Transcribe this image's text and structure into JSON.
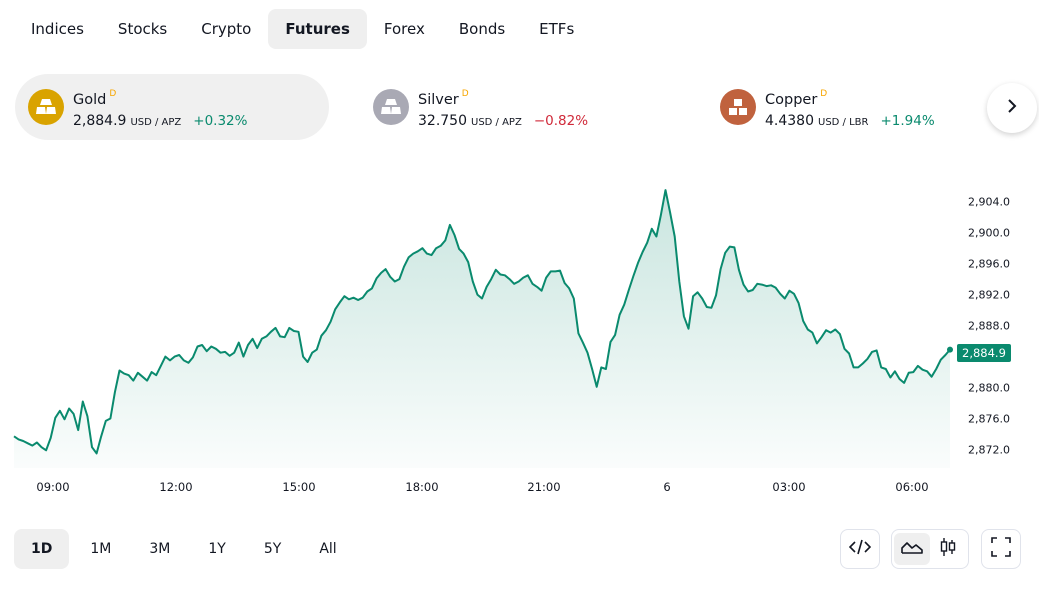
{
  "tabs": [
    {
      "label": "Indices",
      "active": false
    },
    {
      "label": "Stocks",
      "active": false
    },
    {
      "label": "Crypto",
      "active": false
    },
    {
      "label": "Futures",
      "active": true
    },
    {
      "label": "Forex",
      "active": false
    },
    {
      "label": "Bonds",
      "active": false
    },
    {
      "label": "ETFs",
      "active": false
    }
  ],
  "tickers": [
    {
      "name": "Gold",
      "flag": "D",
      "price": "2,884.9",
      "unit": "USD / APZ",
      "change": "+0.32%",
      "direction": "up",
      "icon": "gold-bars-icon",
      "icon_color": "#d9a300"
    },
    {
      "name": "Silver",
      "flag": "D",
      "price": "32.750",
      "unit": "USD / APZ",
      "change": "−0.82%",
      "direction": "down",
      "icon": "silver-bars-icon",
      "icon_color": "#a9a9b4"
    },
    {
      "name": "Copper",
      "flag": "D",
      "price": "4.4380",
      "unit": "USD / LBR",
      "change": "+1.94%",
      "direction": "up",
      "icon": "copper-blocks-icon",
      "icon_color": "#c0623e"
    }
  ],
  "chart_data": {
    "type": "area",
    "series": [
      {
        "values": [
          2873.7,
          2873.3,
          2873.1,
          2872.8,
          2872.5,
          2872.9,
          2872.3,
          2871.9,
          2873.5,
          2876.1,
          2877.0,
          2875.9,
          2877.3,
          2876.6,
          2874.5,
          2878.2,
          2876.3,
          2872.3,
          2871.5,
          2873.7,
          2875.7,
          2876.0,
          2879.4,
          2882.2,
          2881.8,
          2881.6,
          2880.9,
          2881.9,
          2881.4,
          2880.9,
          2882.0,
          2881.6,
          2882.8,
          2884.0,
          2883.5,
          2884.0,
          2884.2,
          2883.5,
          2883.2,
          2883.9,
          2885.3,
          2885.5,
          2884.7,
          2885.3,
          2885.0,
          2884.5,
          2884.6,
          2884.1,
          2884.5,
          2885.8,
          2884.0,
          2885.5,
          2886.3,
          2885.1,
          2886.3,
          2886.6,
          2887.2,
          2887.7,
          2886.6,
          2886.5,
          2887.7,
          2887.3,
          2887.2,
          2884.0,
          2883.3,
          2884.5,
          2884.9,
          2886.7,
          2887.4,
          2888.5,
          2890.1,
          2891.0,
          2891.8,
          2891.4,
          2891.6,
          2891.3,
          2891.6,
          2892.4,
          2892.8,
          2894.1,
          2894.8,
          2895.3,
          2894.3,
          2893.7,
          2894.0,
          2895.6,
          2896.8,
          2897.3,
          2897.6,
          2898.0,
          2897.3,
          2897.1,
          2898.0,
          2898.3,
          2899.0,
          2901.0,
          2899.7,
          2897.9,
          2897.3,
          2896.2,
          2893.7,
          2892.0,
          2891.5,
          2893.0,
          2894.0,
          2895.2,
          2894.6,
          2894.5,
          2894.0,
          2893.4,
          2893.7,
          2894.2,
          2894.5,
          2893.4,
          2893.0,
          2892.5,
          2894.2,
          2895.0,
          2895.0,
          2895.1,
          2893.5,
          2892.8,
          2891.5,
          2887.0,
          2885.8,
          2884.5,
          2882.4,
          2880.1,
          2882.6,
          2882.4,
          2885.9,
          2886.8,
          2889.4,
          2890.7,
          2892.6,
          2894.4,
          2896.1,
          2897.5,
          2898.7,
          2900.5,
          2899.5,
          2902.3,
          2905.5,
          2902.6,
          2899.5,
          2893.7,
          2889.2,
          2887.6,
          2891.8,
          2892.3,
          2891.5,
          2890.4,
          2890.3,
          2891.9,
          2895.3,
          2897.4,
          2898.2,
          2898.1,
          2895.2,
          2893.3,
          2892.4,
          2892.6,
          2893.4,
          2893.3,
          2893.1,
          2893.2,
          2892.9,
          2892.1,
          2891.5,
          2892.5,
          2892.1,
          2890.9,
          2888.6,
          2887.5,
          2887.1,
          2885.7,
          2886.5,
          2887.4,
          2887.1,
          2887.5,
          2886.9,
          2885.0,
          2884.4,
          2882.6,
          2882.6,
          2883.1,
          2883.7,
          2884.6,
          2884.8,
          2882.6,
          2882.4,
          2881.3,
          2882.1,
          2881.1,
          2880.6,
          2881.9,
          2882.0,
          2882.8,
          2882.3,
          2882.1,
          2881.4,
          2882.4,
          2883.6,
          2884.2,
          2884.9
        ]
      }
    ],
    "x_tick_labels": [
      "09:00",
      "12:00",
      "15:00",
      "18:00",
      "21:00",
      "6",
      "03:00",
      "06:00"
    ],
    "y_tick_labels": [
      "2,872.0",
      "2,876.0",
      "2,880.0",
      "2,884.0",
      "2,888.0",
      "2,892.0",
      "2,896.0",
      "2,900.0",
      "2,904.0"
    ],
    "y_tick_values": [
      2872,
      2876,
      2880,
      2884,
      2888,
      2892,
      2896,
      2900,
      2904
    ],
    "ylim": [
      2870.0,
      2906.8
    ],
    "last_value": "2,884.9",
    "color": "#0a8a6e",
    "grid": false
  },
  "ranges": [
    {
      "label": "1D",
      "active": true
    },
    {
      "label": "1M",
      "active": false
    },
    {
      "label": "3M",
      "active": false
    },
    {
      "label": "1Y",
      "active": false
    },
    {
      "label": "5Y",
      "active": false
    },
    {
      "label": "All",
      "active": false
    }
  ],
  "tools": {
    "embed": "code-icon",
    "area_chart": "area-chart-icon",
    "candle_chart": "candlestick-icon",
    "fullscreen": "fullscreen-icon"
  }
}
